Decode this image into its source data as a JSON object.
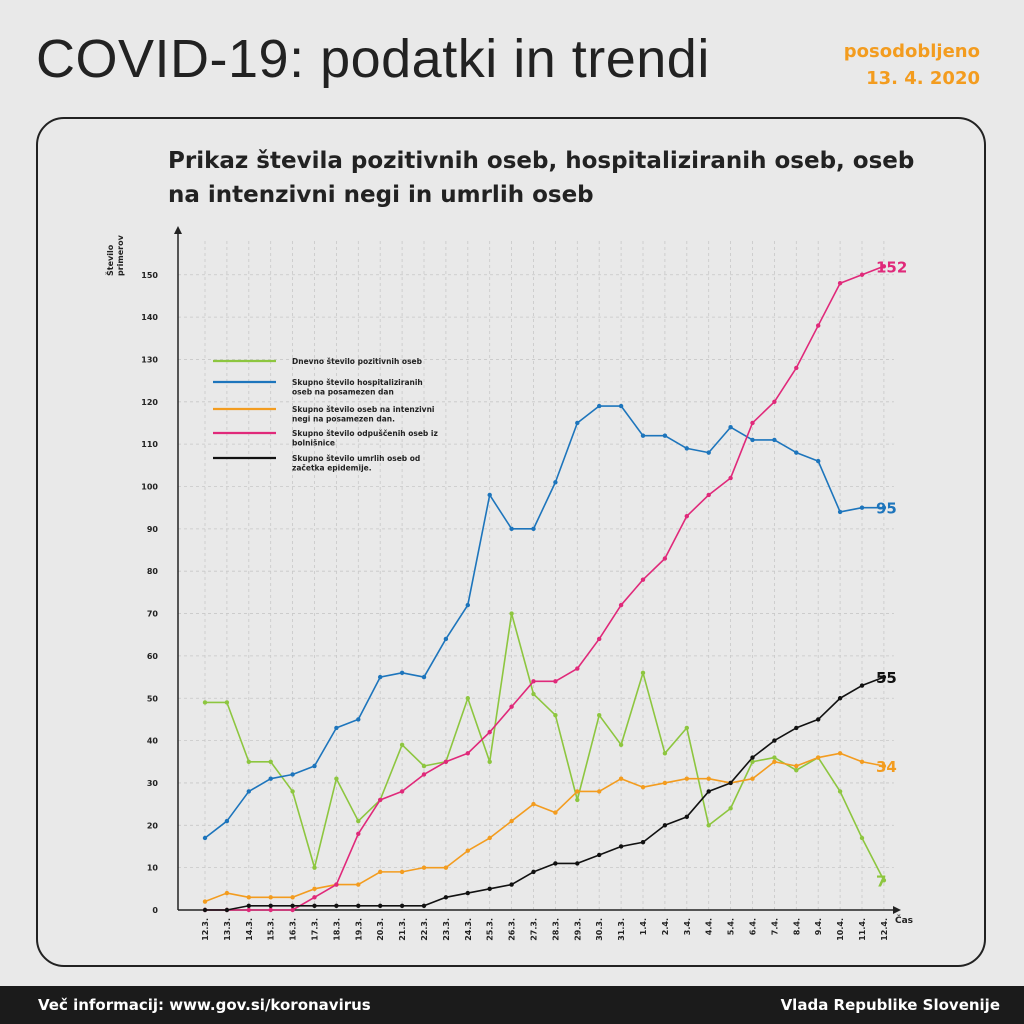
{
  "header": {
    "title": "COVID-19: podatki in trendi",
    "updated_label": "posodobljeno",
    "updated_date": "13. 4. 2020"
  },
  "footer": {
    "info": "Več informacij: www.gov.si/koronavirus",
    "org": "Vlada Republike Slovenije"
  },
  "chart_data": {
    "type": "line",
    "title": "Prikaz števila pozitivnih oseb, hospitaliziranih oseb, oseb na intenzivni negi in umrlih oseb",
    "ylabel": "Število primerov",
    "xlabel": "Čas",
    "ylim": [
      0,
      160
    ],
    "yticks": [
      0,
      10,
      20,
      30,
      40,
      50,
      60,
      70,
      80,
      90,
      100,
      110,
      120,
      130,
      140,
      150
    ],
    "grid": true,
    "legend_position": "top-left",
    "categories": [
      "12.3.",
      "13.3.",
      "14.3.",
      "15.3.",
      "16.3.",
      "17.3.",
      "18.3.",
      "19.3.",
      "20.3.",
      "21.3.",
      "22.3.",
      "23.3.",
      "24.3.",
      "25.3.",
      "26.3.",
      "27.3.",
      "28.3.",
      "29.3.",
      "30.3.",
      "31.3.",
      "1.4.",
      "2.4.",
      "3.4.",
      "4.4.",
      "5.4.",
      "6.4.",
      "7.4.",
      "8.4.",
      "9.4.",
      "10.4.",
      "11.4.",
      "12.4."
    ],
    "series": [
      {
        "name": "Dnevno število pozitivnih oseb",
        "color": "#8dc63f",
        "end_label": "7",
        "values": [
          49,
          49,
          35,
          35,
          28,
          10,
          31,
          21,
          26,
          39,
          34,
          35,
          50,
          35,
          70,
          51,
          46,
          26,
          46,
          39,
          56,
          37,
          43,
          20,
          24,
          35,
          36,
          33,
          36,
          28,
          17,
          7
        ]
      },
      {
        "name": "Skupno število hospitaliziranih oseb na posamezen dan",
        "color": "#1d75bc",
        "end_label": "95",
        "values": [
          17,
          21,
          28,
          31,
          32,
          34,
          43,
          45,
          55,
          56,
          55,
          64,
          72,
          98,
          90,
          90,
          101,
          115,
          119,
          119,
          112,
          112,
          109,
          108,
          114,
          111,
          111,
          108,
          106,
          94,
          95,
          95
        ]
      },
      {
        "name": "Skupno število oseb na intenzivni negi na posamezen dan.",
        "color": "#f39c1f",
        "end_label": "34",
        "values": [
          2,
          4,
          3,
          3,
          3,
          5,
          6,
          6,
          9,
          9,
          10,
          10,
          14,
          17,
          21,
          25,
          23,
          28,
          28,
          31,
          29,
          30,
          31,
          31,
          30,
          31,
          35,
          34,
          36,
          37,
          35,
          34
        ]
      },
      {
        "name": "Skupno število odpuščenih oseb iz bolnišnice",
        "color": "#e0297a",
        "end_label": "152",
        "values": [
          0,
          0,
          0,
          0,
          0,
          3,
          6,
          18,
          26,
          28,
          32,
          35,
          37,
          42,
          48,
          54,
          54,
          57,
          64,
          72,
          78,
          83,
          93,
          98,
          102,
          115,
          120,
          128,
          138,
          148,
          150,
          152
        ]
      },
      {
        "name": "Skupno število umrlih oseb od začetka epidemije.",
        "color": "#111111",
        "end_label": "55",
        "values": [
          0,
          0,
          1,
          1,
          1,
          1,
          1,
          1,
          1,
          1,
          1,
          3,
          4,
          5,
          6,
          9,
          11,
          11,
          13,
          15,
          16,
          20,
          22,
          28,
          30,
          36,
          40,
          43,
          45,
          50,
          53,
          55
        ]
      }
    ]
  }
}
